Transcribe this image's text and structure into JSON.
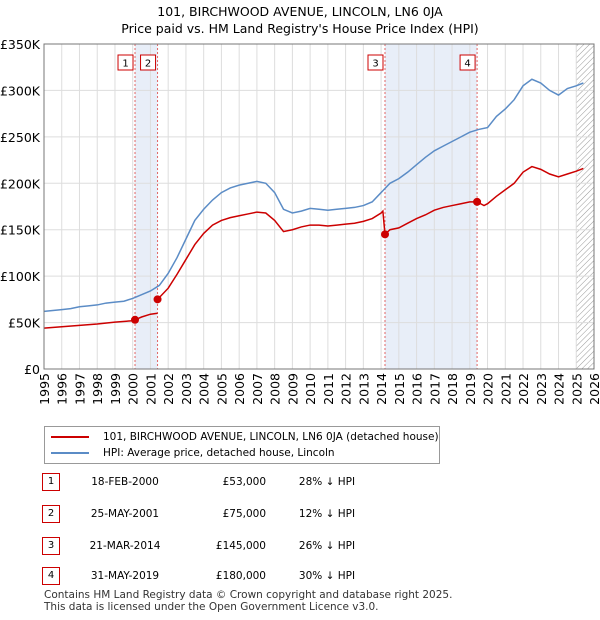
{
  "title_line1": "101, BIRCHWOOD AVENUE, LINCOLN, LN6 0JA",
  "title_line2": "Price paid vs. HM Land Registry's House Price Index (HPI)",
  "legend": {
    "property": "101, BIRCHWOOD AVENUE, LINCOLN, LN6 0JA (detached house)",
    "hpi": "HPI: Average price, detached house, Lincoln"
  },
  "colors": {
    "property": "#cc0000",
    "hpi": "#5b8cc6",
    "shade": "#e8eef8",
    "grid": "#dddddd"
  },
  "sales": [
    {
      "num": "1",
      "date": "18-FEB-2000",
      "price": "£53,000",
      "hpi": "28% ↓ HPI"
    },
    {
      "num": "2",
      "date": "25-MAY-2001",
      "price": "£75,000",
      "hpi": "12% ↓ HPI"
    },
    {
      "num": "3",
      "date": "21-MAR-2014",
      "price": "£145,000",
      "hpi": "26% ↓ HPI"
    },
    {
      "num": "4",
      "date": "31-MAY-2019",
      "price": "£180,000",
      "hpi": "30% ↓ HPI"
    }
  ],
  "footer_line1": "Contains HM Land Registry data © Crown copyright and database right 2025.",
  "footer_line2": "This data is licensed under the Open Government Licence v3.0.",
  "chart_data": {
    "type": "line",
    "xlim": [
      1995,
      2026
    ],
    "ylim": [
      0,
      350000
    ],
    "x_ticks": [
      1995,
      1996,
      1997,
      1998,
      1999,
      2000,
      2001,
      2002,
      2003,
      2004,
      2005,
      2006,
      2007,
      2008,
      2009,
      2010,
      2011,
      2012,
      2013,
      2014,
      2015,
      2016,
      2017,
      2018,
      2019,
      2020,
      2021,
      2022,
      2023,
      2024,
      2025,
      2026
    ],
    "y_ticks": [
      0,
      50000,
      100000,
      150000,
      200000,
      250000,
      300000,
      350000
    ],
    "y_tick_labels": [
      "£0",
      "£50K",
      "£100K",
      "£150K",
      "£200K",
      "£250K",
      "£300K",
      "£350K"
    ],
    "shaded_ranges": [
      [
        2000.13,
        2001.4
      ],
      [
        2014.22,
        2019.41
      ]
    ],
    "future_hatch_from": 2025.0,
    "sale_points": [
      {
        "label": "1",
        "x": 2000.13,
        "y": 53000
      },
      {
        "label": "2",
        "x": 2001.4,
        "y": 75000
      },
      {
        "label": "3",
        "x": 2014.22,
        "y": 145000
      },
      {
        "label": "4",
        "x": 2019.41,
        "y": 180000
      }
    ],
    "series": [
      {
        "name": "HPI: Average price, detached house, Lincoln",
        "x": [
          1995,
          1995.5,
          1996,
          1996.5,
          1997,
          1997.5,
          1998,
          1998.5,
          1999,
          1999.5,
          2000,
          2000.5,
          2001,
          2001.5,
          2002,
          2002.5,
          2003,
          2003.5,
          2004,
          2004.5,
          2005,
          2005.5,
          2006,
          2006.5,
          2007,
          2007.5,
          2008,
          2008.5,
          2009,
          2009.5,
          2010,
          2010.5,
          2011,
          2011.5,
          2012,
          2012.5,
          2013,
          2013.5,
          2014,
          2014.5,
          2015,
          2015.5,
          2016,
          2016.5,
          2017,
          2017.5,
          2018,
          2018.5,
          2019,
          2019.5,
          2020,
          2020.5,
          2021,
          2021.5,
          2022,
          2022.5,
          2023,
          2023.5,
          2024,
          2024.5,
          2025,
          2025.4
        ],
        "values": [
          62000,
          63000,
          64000,
          65000,
          67000,
          68000,
          69000,
          71000,
          72000,
          73000,
          76000,
          80000,
          84000,
          90000,
          103000,
          120000,
          140000,
          160000,
          172000,
          182000,
          190000,
          195000,
          198000,
          200000,
          202000,
          200000,
          190000,
          172000,
          168000,
          170000,
          173000,
          172000,
          171000,
          172000,
          173000,
          174000,
          176000,
          180000,
          190000,
          200000,
          205000,
          212000,
          220000,
          228000,
          235000,
          240000,
          245000,
          250000,
          255000,
          258000,
          260000,
          272000,
          280000,
          290000,
          305000,
          312000,
          308000,
          300000,
          295000,
          302000,
          305000,
          308000
        ]
      },
      {
        "name": "101, BIRCHWOOD AVENUE, LINCOLN, LN6 0JA (detached house)",
        "segments": [
          {
            "x": [
              1995,
              1996,
              1997,
              1998,
              1999,
              2000,
              2000.13
            ],
            "values": [
              44000,
              45500,
              47000,
              48500,
              50500,
              52000,
              53000
            ]
          },
          {
            "x": [
              2000.13,
              2000.5,
              2001,
              2001.4
            ],
            "values": [
              53000,
              56000,
              59000,
              60000
            ]
          },
          {
            "x": [
              2001.4,
              2002,
              2002.5,
              2003,
              2003.5,
              2004,
              2004.5,
              2005,
              2005.5,
              2006,
              2006.5,
              2007,
              2007.5,
              2008,
              2008.5,
              2009,
              2009.5,
              2010,
              2010.5,
              2011,
              2011.5,
              2012,
              2012.5,
              2013,
              2013.5,
              2014,
              2014.1,
              2014.22
            ],
            "values": [
              75000,
              87000,
              102000,
              118000,
              134000,
              146000,
              155000,
              160000,
              163000,
              165000,
              167000,
              169000,
              168000,
              160000,
              148000,
              150000,
              153000,
              155000,
              155000,
              154000,
              155000,
              156000,
              157000,
              159000,
              162000,
              168000,
              170000,
              145000
            ]
          },
          {
            "x": [
              2014.22,
              2014.5,
              2015,
              2015.5,
              2016,
              2016.5,
              2017,
              2017.5,
              2018,
              2018.5,
              2019,
              2019.41
            ],
            "values": [
              145000,
              150000,
              152000,
              157000,
              162000,
              166000,
              171000,
              174000,
              176000,
              178000,
              180000,
              180000
            ]
          },
          {
            "x": [
              2019.41,
              2019.8,
              2020,
              2020.5,
              2021,
              2021.5,
              2022,
              2022.5,
              2023,
              2023.5,
              2024,
              2024.5,
              2025,
              2025.4
            ],
            "values": [
              180000,
              176000,
              178000,
              186000,
              193000,
              200000,
              212000,
              218000,
              215000,
              210000,
              207000,
              210000,
              213000,
              216000
            ]
          }
        ]
      }
    ]
  }
}
